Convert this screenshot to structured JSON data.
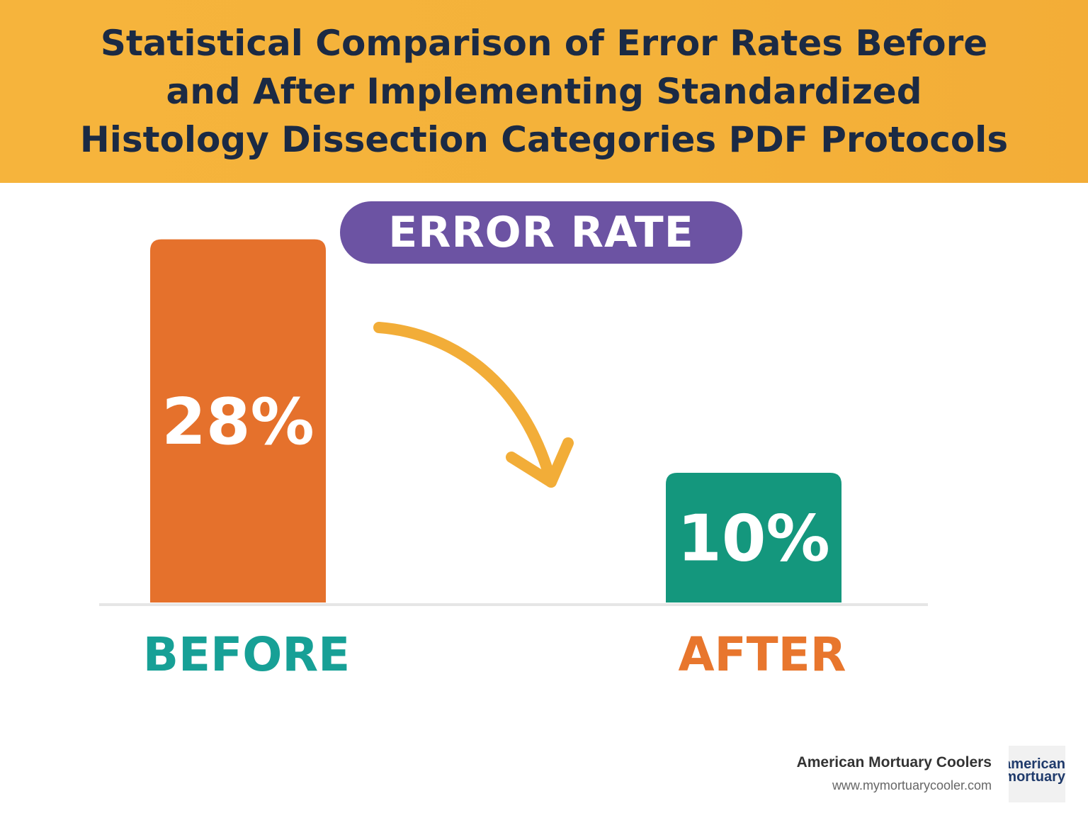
{
  "chart_data": {
    "type": "bar",
    "title": "Statistical Comparison of Error Rates Before and After Implementing Standardized Histology Dissection Categories PDF Protocols",
    "subtitle": "ERROR RATE",
    "categories": [
      "BEFORE",
      "AFTER"
    ],
    "values": [
      28,
      10
    ],
    "value_labels": [
      "28%",
      "10%"
    ],
    "colors": [
      "#e5712c",
      "#14977d"
    ],
    "category_label_colors": [
      "#17a096",
      "#e8762d"
    ]
  },
  "footer": {
    "brand": "American Mortuary Coolers",
    "url": "www.mymortuarycooler.com",
    "logo_lines": [
      "american",
      "mortuary"
    ]
  }
}
